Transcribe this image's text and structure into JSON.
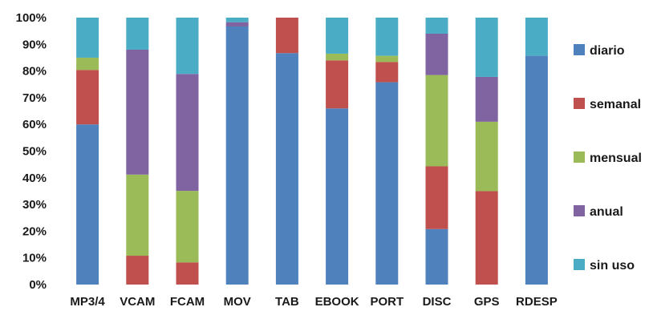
{
  "chart_data": {
    "type": "bar",
    "stacked": true,
    "percent_stacked": true,
    "categories": [
      "MP3/4",
      "VCAM",
      "FCAM",
      "MOV",
      "TAB",
      "EBOOK",
      "PORT",
      "DISC",
      "GPS",
      "RDESP"
    ],
    "series": [
      {
        "name": "diario",
        "color": "#4f81bd",
        "values": [
          60,
          0,
          0,
          96.7,
          86.7,
          66,
          75.8,
          20.8,
          0,
          85.7
        ]
      },
      {
        "name": "semanal",
        "color": "#c0504d",
        "values": [
          20.4,
          10.8,
          8.3,
          0,
          13.3,
          18,
          7.6,
          23.5,
          35,
          0
        ]
      },
      {
        "name": "mensual",
        "color": "#9bbb59",
        "values": [
          4.6,
          30.4,
          26.8,
          0,
          0,
          2.5,
          2.3,
          34.2,
          26,
          0
        ]
      },
      {
        "name": "anual",
        "color": "#8064a2",
        "values": [
          0,
          46.8,
          43.8,
          1.6,
          0,
          0,
          0,
          15.5,
          16.8,
          0
        ]
      },
      {
        "name": "sin uso",
        "color": "#4bacc6",
        "values": [
          15,
          12,
          21.1,
          1.7,
          0,
          13.5,
          14.3,
          6,
          22.2,
          14.3
        ]
      }
    ],
    "y_ticks": [
      "0%",
      "10%",
      "20%",
      "30%",
      "40%",
      "50%",
      "60%",
      "70%",
      "80%",
      "90%",
      "100%"
    ],
    "ylim": [
      0,
      100
    ],
    "grid": false,
    "legend_position": "right"
  }
}
